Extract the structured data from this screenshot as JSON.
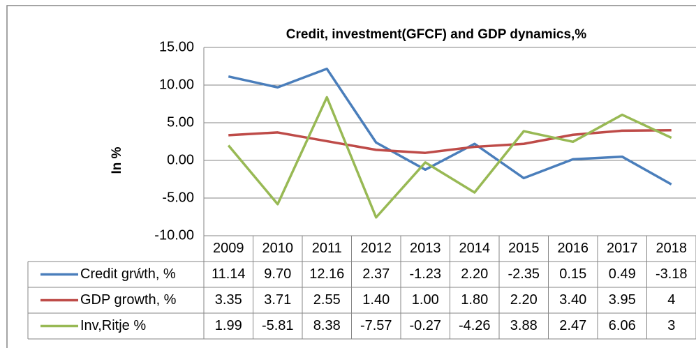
{
  "chart_data": {
    "type": "line",
    "title": "Credit, investment(GFCF) and GDP dynamics,%",
    "y_label": "In %",
    "categories": [
      "2009",
      "2010",
      "2011",
      "2012",
      "2013",
      "2014",
      "2015",
      "2016",
      "2017",
      "2018"
    ],
    "series": [
      {
        "name": "Credit grẃth, %",
        "color": "#4a7ebb",
        "values": [
          11.14,
          9.7,
          12.16,
          2.37,
          -1.23,
          2.2,
          -2.35,
          0.15,
          0.49,
          -3.18
        ],
        "value_labels": [
          "11.14",
          "9.70",
          "12.16",
          "2.37",
          "-1.23",
          "2.20",
          "-2.35",
          "0.15",
          "0.49",
          "-3.18"
        ]
      },
      {
        "name": "GDP growth, %",
        "color": "#be4b48",
        "values": [
          3.35,
          3.71,
          2.55,
          1.4,
          1.0,
          1.8,
          2.2,
          3.4,
          3.95,
          4
        ],
        "value_labels": [
          "3.35",
          "3.71",
          "2.55",
          "1.40",
          "1.00",
          "1.80",
          "2.20",
          "3.40",
          "3.95",
          "4"
        ]
      },
      {
        "name": "Inv,Ritje %",
        "color": "#98b954",
        "values": [
          1.99,
          -5.81,
          8.38,
          -7.57,
          -0.27,
          -4.26,
          3.88,
          2.47,
          6.06,
          3
        ],
        "value_labels": [
          "1.99",
          "-5.81",
          "8.38",
          "-7.57",
          "-0.27",
          "-4.26",
          "3.88",
          "2.47",
          "6.06",
          "3"
        ]
      }
    ],
    "ylim": [
      -10,
      15
    ],
    "yticks": [
      {
        "value": -10,
        "label": "-10.00"
      },
      {
        "value": -5,
        "label": "-5.00"
      },
      {
        "value": 0,
        "label": "0.00"
      },
      {
        "value": 5,
        "label": "5.00"
      },
      {
        "value": 10,
        "label": "10.00"
      },
      {
        "value": 15,
        "label": "15.00"
      }
    ],
    "grid": true
  }
}
